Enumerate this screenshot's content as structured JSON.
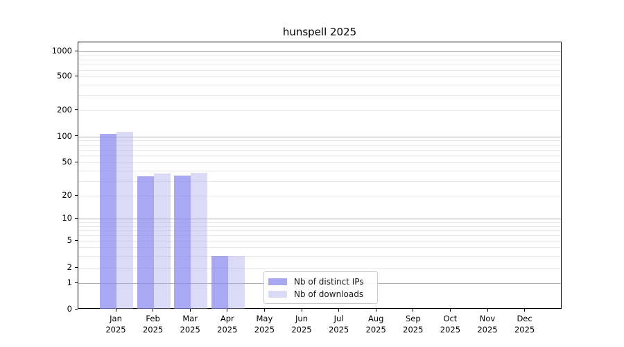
{
  "chart_data": {
    "type": "bar",
    "title": "hunspell 2025",
    "yscale": "symlog",
    "grid": true,
    "y_ticks": [
      0,
      1,
      2,
      5,
      10,
      20,
      50,
      100,
      200,
      500,
      1000
    ],
    "ylim": [
      0,
      1300
    ],
    "categories": [
      "Jan",
      "Feb",
      "Mar",
      "Apr",
      "May",
      "Jun",
      "Jul",
      "Aug",
      "Sep",
      "Oct",
      "Nov",
      "Dec"
    ],
    "year_label": "2025",
    "series": [
      {
        "name": "Nb of distinct IPs",
        "color": "#8888ee",
        "alpha": 0.72,
        "values": [
          107,
          34,
          35,
          3,
          0,
          0,
          0,
          0,
          0,
          0,
          0,
          0
        ]
      },
      {
        "name": "Nb of downloads",
        "color": "#aaaaee",
        "alpha": 0.42,
        "values": [
          112,
          37,
          38,
          3,
          0,
          0,
          0,
          0,
          0,
          0,
          0,
          0
        ]
      }
    ],
    "legend_position": "bottom-center"
  }
}
